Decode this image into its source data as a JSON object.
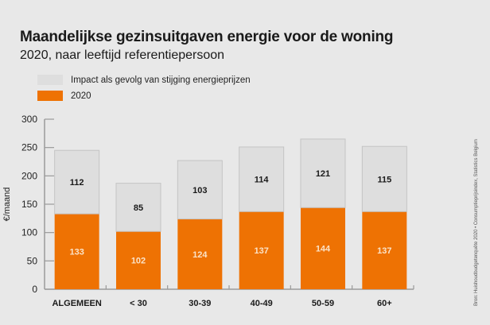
{
  "chart_data": {
    "type": "bar",
    "stacked": true,
    "title": "Maandelijkse gezinsuitgaven energie voor de woning",
    "subtitle": "2020, naar leeftijd referentiepersoon",
    "xlabel": "",
    "ylabel": "€/maand",
    "ylim": [
      0,
      300
    ],
    "yticks": [
      0,
      50,
      100,
      150,
      200,
      250,
      300
    ],
    "grid": false,
    "legend_position": "top-left",
    "categories": [
      "ALGEMEEN",
      "< 30",
      "30-39",
      "40-49",
      "50-59",
      "60+"
    ],
    "series": [
      {
        "name": "2020",
        "color": "#ee7203",
        "label_color": "#fbe3c8",
        "values": [
          133,
          102,
          124,
          137,
          144,
          137
        ]
      },
      {
        "name": "Impact als gevolg van stijging energieprijzen",
        "color": "#dedede",
        "label_color": "#1a1a1a",
        "values": [
          112,
          85,
          103,
          114,
          121,
          115
        ]
      }
    ],
    "legend": [
      {
        "label": "Impact als gevolg van stijging energieprijzen",
        "color": "#dedede"
      },
      {
        "label": "2020",
        "color": "#ee7203"
      }
    ],
    "source": "Bron: Huishoudbudgetenquête 2020 • Consumptieprijsindex, Statistics Belgium"
  }
}
